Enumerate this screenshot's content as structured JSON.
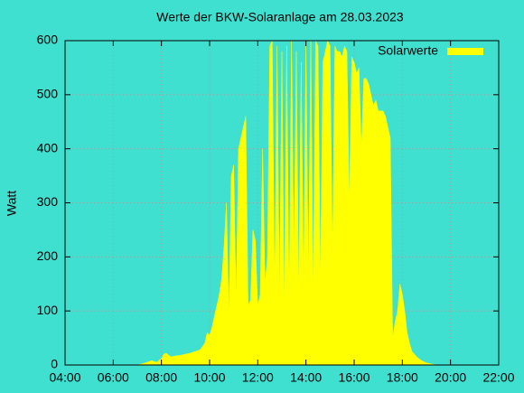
{
  "chart_data": {
    "type": "area",
    "title": "Werte der BKW-Solaranlage am 28.03.2023",
    "y_label": "Watt",
    "legend": "top-right",
    "grid": true,
    "series": [
      {
        "name": "Solarwerte",
        "color": "#ffff00",
        "x": [
          7.0,
          7.2,
          7.4,
          7.6,
          7.8,
          8.0,
          8.1,
          8.2,
          8.3,
          8.4,
          8.6,
          8.8,
          9.0,
          9.2,
          9.4,
          9.6,
          9.8,
          9.9,
          10.0,
          10.1,
          10.2,
          10.3,
          10.4,
          10.5,
          10.6,
          10.7,
          10.8,
          10.9,
          11.0,
          11.1,
          11.2,
          11.3,
          11.4,
          11.5,
          11.6,
          11.7,
          11.8,
          11.9,
          12.0,
          12.1,
          12.2,
          12.3,
          12.4,
          12.5,
          12.6,
          12.7,
          12.8,
          12.9,
          13.0,
          13.1,
          13.2,
          13.3,
          13.4,
          13.5,
          13.6,
          13.7,
          13.8,
          13.9,
          14.0,
          14.1,
          14.2,
          14.3,
          14.4,
          14.5,
          14.6,
          14.7,
          14.8,
          14.9,
          15.0,
          15.1,
          15.2,
          15.3,
          15.4,
          15.5,
          15.6,
          15.7,
          15.8,
          15.9,
          16.0,
          16.1,
          16.2,
          16.3,
          16.4,
          16.5,
          16.6,
          16.7,
          16.8,
          16.9,
          17.0,
          17.1,
          17.2,
          17.3,
          17.4,
          17.5,
          17.6,
          17.7,
          17.8,
          17.9,
          18.0,
          18.1,
          18.2,
          18.3,
          18.4,
          18.6,
          18.8,
          19.0,
          19.2,
          19.4
        ],
        "values": [
          0,
          2,
          5,
          8,
          5,
          12,
          20,
          22,
          18,
          15,
          17,
          18,
          20,
          22,
          25,
          28,
          40,
          60,
          55,
          70,
          90,
          110,
          130,
          160,
          220,
          300,
          90,
          350,
          370,
          120,
          400,
          420,
          440,
          460,
          110,
          120,
          250,
          230,
          110,
          130,
          400,
          150,
          200,
          590,
          600,
          130,
          590,
          120,
          580,
          100,
          590,
          120,
          600,
          200,
          580,
          130,
          560,
          150,
          600,
          160,
          600,
          130,
          600,
          590,
          150,
          560,
          580,
          600,
          590,
          200,
          590,
          580,
          580,
          570,
          590,
          580,
          300,
          570,
          560,
          540,
          550,
          400,
          530,
          530,
          520,
          500,
          480,
          490,
          470,
          470,
          470,
          460,
          440,
          420,
          50,
          80,
          100,
          150,
          130,
          100,
          60,
          40,
          25,
          15,
          8,
          4,
          2,
          0
        ]
      }
    ],
    "xlim": [
      4,
      22
    ],
    "xticks": [
      {
        "value": 4,
        "label": "04:00"
      },
      {
        "value": 6,
        "label": "06:00"
      },
      {
        "value": 8,
        "label": "08:00"
      },
      {
        "value": 10,
        "label": "10:00"
      },
      {
        "value": 12,
        "label": "12:00"
      },
      {
        "value": 14,
        "label": "14:00"
      },
      {
        "value": 16,
        "label": "16:00"
      },
      {
        "value": 18,
        "label": "18:00"
      },
      {
        "value": 20,
        "label": "20:00"
      },
      {
        "value": 22,
        "label": "22:00"
      }
    ],
    "ylim": [
      0,
      600
    ],
    "yticks": [
      0,
      100,
      200,
      300,
      400,
      500,
      600
    ]
  }
}
